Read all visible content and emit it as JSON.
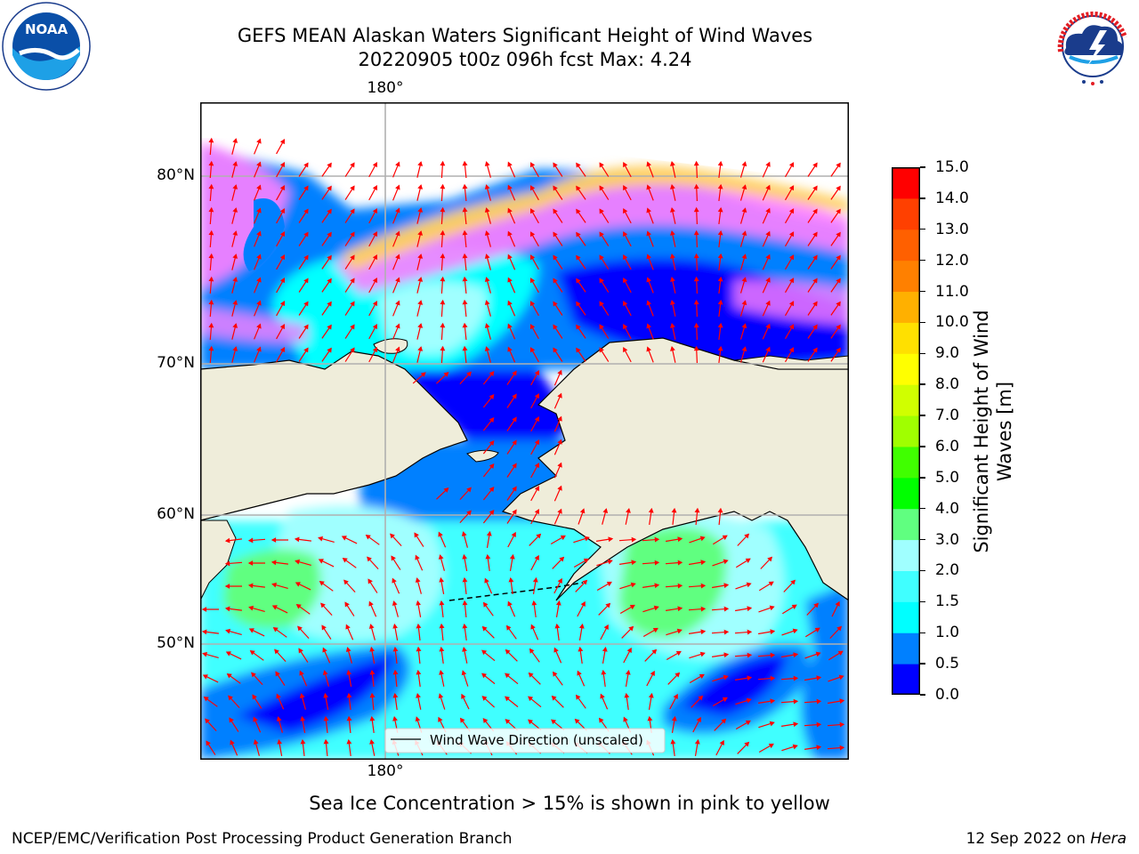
{
  "header": {
    "title_line1": "GEFS MEAN Alaskan Waters Significant Height of Wind Waves",
    "title_line2": "20220905 t00z 096h fcst   Max: 4.24"
  },
  "logos": {
    "noaa_text": "NOAA",
    "noaa_ring_text": "NATIONAL OCEANIC AND ATMOSPHERIC ADMINISTRATION · U.S. DEPARTMENT OF COMMERCE",
    "nws_ring_text": "NATIONAL WEATHER SERVICE"
  },
  "map": {
    "lon_top": "180°",
    "lon_bottom": "180°",
    "lat_labels": [
      "80°N",
      "70°N",
      "60°N",
      "50°N"
    ],
    "legend_label": "Wind Wave Direction (unscaled)",
    "colors": {
      "land": "#efedda",
      "vector": "#ff0000",
      "grid": "#b0b0b0"
    }
  },
  "chart_data": {
    "type": "heatmap",
    "title": "GEFS MEAN Alaskan Waters Significant Height of Wind Waves",
    "subtitle": "20220905 t00z 096h fcst   Max: 4.24",
    "colorbar": {
      "label": "Significant Height of Wind Waves [m]",
      "ticks": [
        "0.0",
        "0.5",
        "1.0",
        "1.5",
        "2.0",
        "3.0",
        "4.0",
        "5.0",
        "6.0",
        "7.0",
        "8.0",
        "9.0",
        "10.0",
        "11.0",
        "12.0",
        "13.0",
        "14.0",
        "15.0"
      ],
      "colors": [
        "#0000ff",
        "#0080ff",
        "#00ffff",
        "#40ffff",
        "#a0ffff",
        "#60ff80",
        "#00ff00",
        "#40ff00",
        "#a0ff00",
        "#d0ff00",
        "#ffff00",
        "#ffe000",
        "#ffb000",
        "#ff8000",
        "#ff6000",
        "#ff4000",
        "#ff0000"
      ]
    },
    "max_value": 4.24,
    "lat_gridlines": [
      80,
      70,
      60,
      50
    ],
    "lon_gridlines": [
      180
    ]
  },
  "note": "Sea Ice Concentration > 15% is shown in pink to yellow",
  "footer": {
    "left": "NCEP/EMC/Verification Post Processing Product Generation Branch",
    "date": "12 Sep 2022 on ",
    "host": "Hera"
  }
}
